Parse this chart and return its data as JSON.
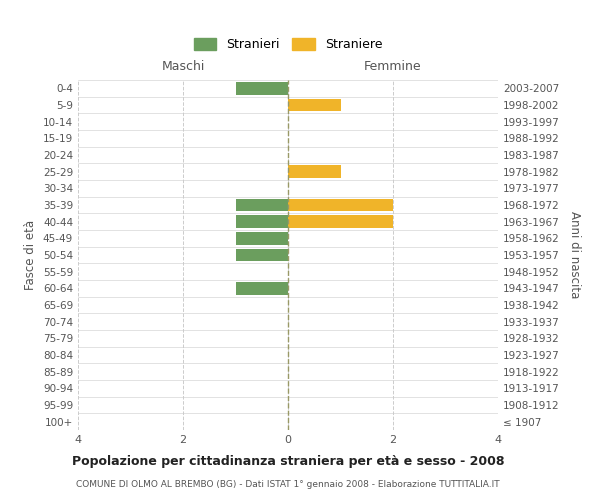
{
  "age_groups": [
    "100+",
    "95-99",
    "90-94",
    "85-89",
    "80-84",
    "75-79",
    "70-74",
    "65-69",
    "60-64",
    "55-59",
    "50-54",
    "45-49",
    "40-44",
    "35-39",
    "30-34",
    "25-29",
    "20-24",
    "15-19",
    "10-14",
    "5-9",
    "0-4"
  ],
  "birth_years": [
    "≤ 1907",
    "1908-1912",
    "1913-1917",
    "1918-1922",
    "1923-1927",
    "1928-1932",
    "1933-1937",
    "1938-1942",
    "1943-1947",
    "1948-1952",
    "1953-1957",
    "1958-1962",
    "1963-1967",
    "1968-1972",
    "1973-1977",
    "1978-1982",
    "1983-1987",
    "1988-1992",
    "1993-1997",
    "1998-2002",
    "2003-2007"
  ],
  "males": [
    0,
    0,
    0,
    0,
    0,
    0,
    0,
    0,
    1,
    0,
    1,
    1,
    1,
    1,
    0,
    0,
    0,
    0,
    0,
    0,
    1
  ],
  "females": [
    0,
    0,
    0,
    0,
    0,
    0,
    0,
    0,
    0,
    0,
    0,
    0,
    2,
    2,
    0,
    1,
    0,
    0,
    0,
    1,
    0
  ],
  "male_color": "#6b9e5e",
  "female_color": "#f0b429",
  "title": "Popolazione per cittadinanza straniera per età e sesso - 2008",
  "subtitle": "COMUNE DI OLMO AL BREMBO (BG) - Dati ISTAT 1° gennaio 2008 - Elaborazione TUTTITALIA.IT",
  "xlabel_left": "Maschi",
  "xlabel_right": "Femmine",
  "ylabel_left": "Fasce di età",
  "ylabel_right": "Anni di nascita",
  "legend_male": "Stranieri",
  "legend_female": "Straniere",
  "xlim": 4,
  "background_color": "#ffffff",
  "grid_color": "#cccccc",
  "center_line_color": "#999966"
}
